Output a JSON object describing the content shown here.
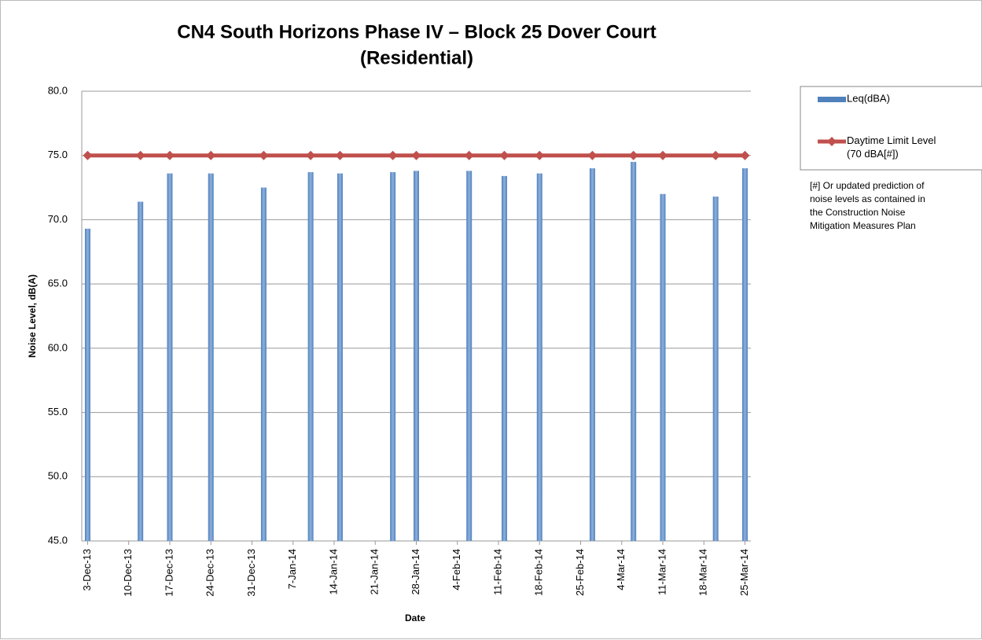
{
  "chart_data": {
    "type": "bar-line",
    "title": [
      "CN4 South Horizons Phase IV – Block 25 Dover Court",
      "(Residential)"
    ],
    "y_label": "Noise Level, dB(A)",
    "x_label": "Date",
    "x": [
      "2013-12-03",
      "2013-12-12",
      "2013-12-17",
      "2013-12-24",
      "2014-01-02",
      "2014-01-10",
      "2014-01-15",
      "2014-01-24",
      "2014-01-28",
      "2014-02-06",
      "2014-02-12",
      "2014-02-18",
      "2014-02-27",
      "2014-03-06",
      "2014-03-11",
      "2014-03-20",
      "2014-03-25"
    ],
    "series": [
      {
        "name": "Leq(dBA)",
        "type": "bar",
        "color": "#4f81bd",
        "values": [
          69.3,
          71.4,
          73.6,
          73.6,
          72.5,
          73.7,
          73.6,
          73.7,
          73.8,
          73.8,
          73.4,
          73.6,
          74.0,
          74.5,
          72.0,
          71.8,
          74.0
        ]
      },
      {
        "name": "Daytime Limit Level (70 dBA[#])",
        "type": "line",
        "color": "#c0504d",
        "values": [
          75,
          75,
          75,
          75,
          75,
          75,
          75,
          75,
          75,
          75,
          75,
          75,
          75,
          75,
          75,
          75,
          75
        ]
      }
    ],
    "legend_note": "[#] Or updated prediction of noise levels as contained in the Construction Noise Mitigation Measures Plan",
    "xlim": [
      "2013-12-02",
      "2014-03-26"
    ],
    "xticks": [
      {
        "value": "2013-12-03",
        "label": "3-Dec-13"
      },
      {
        "value": "2013-12-10",
        "label": "10-Dec-13"
      },
      {
        "value": "2013-12-17",
        "label": "17-Dec-13"
      },
      {
        "value": "2013-12-24",
        "label": "24-Dec-13"
      },
      {
        "value": "2013-12-31",
        "label": "31-Dec-13"
      },
      {
        "value": "2014-01-07",
        "label": "7-Jan-14"
      },
      {
        "value": "2014-01-14",
        "label": "14-Jan-14"
      },
      {
        "value": "2014-01-21",
        "label": "21-Jan-14"
      },
      {
        "value": "2014-01-28",
        "label": "28-Jan-14"
      },
      {
        "value": "2014-02-04",
        "label": "4-Feb-14"
      },
      {
        "value": "2014-02-11",
        "label": "11-Feb-14"
      },
      {
        "value": "2014-02-18",
        "label": "18-Feb-14"
      },
      {
        "value": "2014-02-25",
        "label": "25-Feb-14"
      },
      {
        "value": "2014-03-04",
        "label": "4-Mar-14"
      },
      {
        "value": "2014-03-11",
        "label": "11-Mar-14"
      },
      {
        "value": "2014-03-18",
        "label": "18-Mar-14"
      },
      {
        "value": "2014-03-25",
        "label": "25-Mar-14"
      }
    ],
    "ylim": [
      45,
      80
    ],
    "yticks": [
      {
        "value": 45,
        "label": "45.0"
      },
      {
        "value": 50,
        "label": "50.0"
      },
      {
        "value": 55,
        "label": "55.0"
      },
      {
        "value": 60,
        "label": "60.0"
      },
      {
        "value": 65,
        "label": "65.0"
      },
      {
        "value": 70,
        "label": "70.0"
      },
      {
        "value": 75,
        "label": "75.0"
      },
      {
        "value": 80,
        "label": "80.0"
      }
    ],
    "grid": true,
    "legend": "right"
  }
}
